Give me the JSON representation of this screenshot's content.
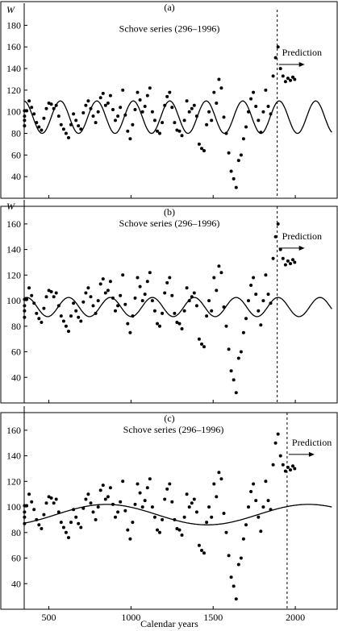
{
  "chart_data": [
    {
      "type": "scatter",
      "panel_label": "(a)",
      "annotation": "Schove series (296–1996)",
      "prediction_label": "Prediction",
      "ylabel": "W",
      "xlim": [
        350,
        2250
      ],
      "ylim": [
        20,
        190
      ],
      "yticks": [
        40,
        60,
        80,
        100,
        120,
        140,
        160,
        180
      ],
      "prediction_start": 1890,
      "model": {
        "name": "",
        "mean": 95,
        "amplitude": 15,
        "period": 222,
        "phase_ref": 1014
      },
      "points": {
        "x": [
          305,
          320,
          335,
          350,
          365,
          380,
          395,
          410,
          425,
          440,
          455,
          470,
          485,
          500,
          515,
          530,
          545,
          560,
          575,
          590,
          605,
          620,
          635,
          650,
          665,
          680,
          695,
          710,
          725,
          740,
          755,
          770,
          785,
          800,
          815,
          830,
          845,
          860,
          875,
          890,
          905,
          920,
          935,
          950,
          965,
          980,
          995,
          1010,
          1025,
          1040,
          1055,
          1070,
          1085,
          1100,
          1115,
          1130,
          1145,
          1160,
          1175,
          1190,
          1205,
          1220,
          1235,
          1250,
          1265,
          1280,
          1295,
          1310,
          1325,
          1340,
          1355,
          1370,
          1385,
          1400,
          1415,
          1430,
          1445,
          1460,
          1475,
          1490,
          1505,
          1520,
          1535,
          1550,
          1565,
          1580,
          1595,
          1610,
          1625,
          1640,
          1655,
          1670,
          1685,
          1700,
          1715,
          1730,
          1745,
          1760,
          1775,
          1790,
          1805,
          1820,
          1835,
          1850,
          1865,
          1880,
          1895,
          1910,
          1925,
          1940,
          1955,
          1970,
          1985,
          1996
        ],
        "y": [
          101,
          96,
          87,
          92,
          101,
          110,
          104,
          98,
          90,
          86,
          83,
          94,
          103,
          108,
          107,
          103,
          106,
          96,
          88,
          84,
          80,
          76,
          88,
          98,
          92,
          87,
          84,
          99,
          106,
          110,
          103,
          96,
          90,
          100,
          113,
          117,
          106,
          108,
          115,
          102,
          92,
          96,
          104,
          120,
          97,
          82,
          75,
          88,
          102,
          118,
          111,
          100,
          105,
          115,
          122,
          100,
          92,
          82,
          80,
          90,
          106,
          114,
          118,
          104,
          90,
          83,
          82,
          78,
          92,
          110,
          100,
          103,
          106,
          96,
          70,
          66,
          64,
          88,
          100,
          92,
          118,
          108,
          130,
          122,
          95,
          80,
          62,
          45,
          38,
          30,
          55,
          60,
          75,
          86,
          100,
          112,
          118,
          105,
          92,
          81,
          100,
          120,
          105,
          98,
          133,
          150,
          160,
          140,
          133,
          128,
          131,
          129,
          132,
          130
        ]
      }
    },
    {
      "type": "scatter",
      "panel_label": "(b)",
      "annotation": "Schove series (296–1996)",
      "prediction_label": "Prediction",
      "ylabel": "W",
      "xlim": [
        350,
        2250
      ],
      "ylim": [
        20,
        170
      ],
      "yticks": [
        40,
        60,
        80,
        100,
        120,
        140,
        160
      ],
      "prediction_start": 1890,
      "model": {
        "name": "",
        "mean": 95,
        "amplitude": 7.5,
        "period": 255,
        "phase_ref": 1130
      },
      "points": {
        "x": [
          305,
          320,
          335,
          350,
          365,
          380,
          395,
          410,
          425,
          440,
          455,
          470,
          485,
          500,
          515,
          530,
          545,
          560,
          575,
          590,
          605,
          620,
          635,
          650,
          665,
          680,
          695,
          710,
          725,
          740,
          755,
          770,
          785,
          800,
          815,
          830,
          845,
          860,
          875,
          890,
          905,
          920,
          935,
          950,
          965,
          980,
          995,
          1010,
          1025,
          1040,
          1055,
          1070,
          1085,
          1100,
          1115,
          1130,
          1145,
          1160,
          1175,
          1190,
          1205,
          1220,
          1235,
          1250,
          1265,
          1280,
          1295,
          1310,
          1325,
          1340,
          1355,
          1370,
          1385,
          1400,
          1415,
          1430,
          1445,
          1460,
          1475,
          1490,
          1505,
          1520,
          1535,
          1550,
          1565,
          1580,
          1595,
          1610,
          1625,
          1640,
          1655,
          1670,
          1685,
          1700,
          1715,
          1730,
          1745,
          1760,
          1775,
          1790,
          1805,
          1820,
          1835,
          1850,
          1865,
          1880,
          1895,
          1910,
          1925,
          1940,
          1955,
          1970,
          1985,
          1996
        ],
        "y": [
          101,
          96,
          87,
          92,
          101,
          110,
          104,
          98,
          90,
          86,
          83,
          94,
          103,
          108,
          107,
          103,
          106,
          96,
          88,
          84,
          80,
          76,
          88,
          98,
          92,
          87,
          84,
          99,
          106,
          110,
          103,
          96,
          90,
          100,
          113,
          117,
          106,
          108,
          115,
          102,
          92,
          96,
          104,
          120,
          97,
          82,
          75,
          88,
          102,
          118,
          111,
          100,
          105,
          115,
          122,
          100,
          92,
          82,
          80,
          90,
          106,
          114,
          118,
          104,
          90,
          83,
          82,
          78,
          92,
          110,
          100,
          103,
          106,
          96,
          70,
          66,
          64,
          88,
          100,
          92,
          118,
          108,
          127,
          122,
          95,
          80,
          62,
          45,
          38,
          28,
          55,
          60,
          75,
          86,
          100,
          112,
          118,
          105,
          92,
          81,
          100,
          120,
          105,
          98,
          133,
          150,
          160,
          140,
          133,
          128,
          131,
          129,
          132,
          130
        ]
      }
    },
    {
      "type": "scatter",
      "panel_label": "(c)",
      "annotation": "Schove series (296–1996)",
      "prediction_label": "Prediction",
      "ylabel": "",
      "xlabel": "Calendar years",
      "xlim": [
        350,
        2250
      ],
      "ylim": [
        20,
        170
      ],
      "yticks": [
        40,
        60,
        80,
        100,
        120,
        140,
        160
      ],
      "xticks": [
        500,
        1000,
        1500,
        2000
      ],
      "prediction_start": 1950,
      "model": {
        "name": "",
        "mean": 94,
        "amplitude": 8,
        "period": 1230,
        "phase_ref": 850
      },
      "points": {
        "x": [
          305,
          320,
          335,
          350,
          365,
          380,
          395,
          410,
          425,
          440,
          455,
          470,
          485,
          500,
          515,
          530,
          545,
          560,
          575,
          590,
          605,
          620,
          635,
          650,
          665,
          680,
          695,
          710,
          725,
          740,
          755,
          770,
          785,
          800,
          815,
          830,
          845,
          860,
          875,
          890,
          905,
          920,
          935,
          950,
          965,
          980,
          995,
          1010,
          1025,
          1040,
          1055,
          1070,
          1085,
          1100,
          1115,
          1130,
          1145,
          1160,
          1175,
          1190,
          1205,
          1220,
          1235,
          1250,
          1265,
          1280,
          1295,
          1310,
          1325,
          1340,
          1355,
          1370,
          1385,
          1400,
          1415,
          1430,
          1445,
          1460,
          1475,
          1490,
          1505,
          1520,
          1535,
          1550,
          1565,
          1580,
          1595,
          1610,
          1625,
          1640,
          1655,
          1670,
          1685,
          1700,
          1715,
          1730,
          1745,
          1760,
          1775,
          1790,
          1805,
          1820,
          1835,
          1850,
          1865,
          1880,
          1895,
          1910,
          1925,
          1940,
          1955,
          1970,
          1985,
          1996
        ],
        "y": [
          101,
          96,
          87,
          92,
          101,
          110,
          104,
          98,
          90,
          86,
          83,
          94,
          103,
          108,
          107,
          103,
          106,
          96,
          88,
          84,
          80,
          76,
          88,
          98,
          92,
          87,
          84,
          99,
          106,
          110,
          103,
          96,
          90,
          100,
          113,
          117,
          106,
          108,
          115,
          102,
          92,
          96,
          104,
          120,
          97,
          82,
          75,
          88,
          102,
          118,
          111,
          100,
          105,
          115,
          122,
          100,
          92,
          82,
          80,
          90,
          106,
          114,
          118,
          104,
          90,
          83,
          82,
          78,
          92,
          110,
          100,
          103,
          106,
          96,
          70,
          66,
          64,
          88,
          100,
          92,
          118,
          108,
          127,
          122,
          95,
          80,
          62,
          45,
          38,
          28,
          55,
          60,
          75,
          86,
          100,
          112,
          118,
          105,
          92,
          81,
          100,
          120,
          105,
          98,
          133,
          150,
          157,
          140,
          133,
          128,
          131,
          129,
          132,
          130
        ]
      }
    }
  ],
  "axis": {
    "x_title": "Calendar years"
  }
}
